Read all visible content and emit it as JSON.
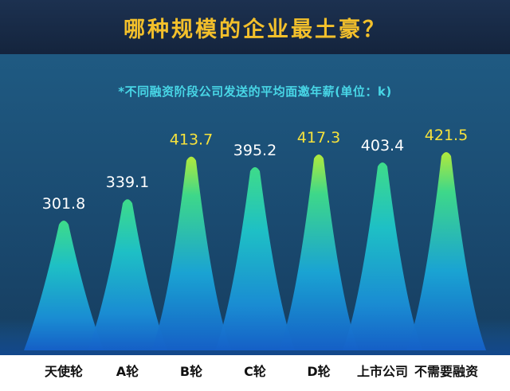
{
  "header": {
    "title": "哪种规模的企业最土豪？"
  },
  "chart_data": {
    "type": "bar",
    "title": "哪种规模的企业最土豪？",
    "subtitle": "*不同融资阶段公司发送的平均面邀年薪(单位：k)",
    "categories": [
      "天使轮",
      "A轮",
      "B轮",
      "C轮",
      "D轮",
      "上市公司",
      "不需要融资"
    ],
    "values": [
      301.8,
      339.1,
      413.7,
      395.2,
      417.3,
      403.4,
      421.5
    ],
    "value_labels": [
      "301.8",
      "339.1",
      "413.7",
      "395.2",
      "417.3",
      "403.4",
      "421.5"
    ],
    "highlighted": [
      false,
      false,
      true,
      false,
      true,
      false,
      true
    ],
    "colors": {
      "label_default": "#ffffff",
      "label_highlight": "#f6e23c",
      "category_label": "#111111"
    }
  }
}
